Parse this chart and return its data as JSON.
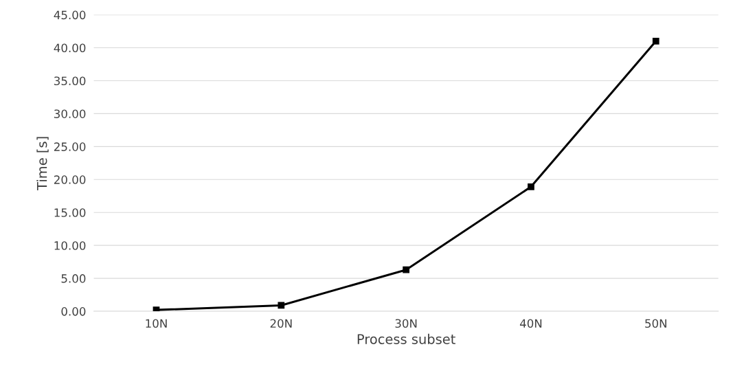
{
  "chart_data": {
    "type": "line",
    "xlabel": "Process subset",
    "ylabel": "Time [s]",
    "categories": [
      "10N",
      "20N",
      "30N",
      "40N",
      "50N"
    ],
    "series": [
      {
        "color": "#000000",
        "values": [
          0.2,
          0.9,
          6.3,
          18.9,
          41.0
        ]
      }
    ],
    "ylim": [
      0,
      45
    ],
    "yticks": [
      {
        "value": 0,
        "label": "0.00"
      },
      {
        "value": 5,
        "label": "5.00"
      },
      {
        "value": 10,
        "label": "10.00"
      },
      {
        "value": 15,
        "label": "15.00"
      },
      {
        "value": 20,
        "label": "20.00"
      },
      {
        "value": 25,
        "label": "25.00"
      },
      {
        "value": 30,
        "label": "30.00"
      },
      {
        "value": 35,
        "label": "35.00"
      },
      {
        "value": 40,
        "label": "40.00"
      },
      {
        "value": 45,
        "label": "45.00"
      }
    ],
    "grid": "y",
    "marker": "square",
    "line_style": "solid"
  }
}
